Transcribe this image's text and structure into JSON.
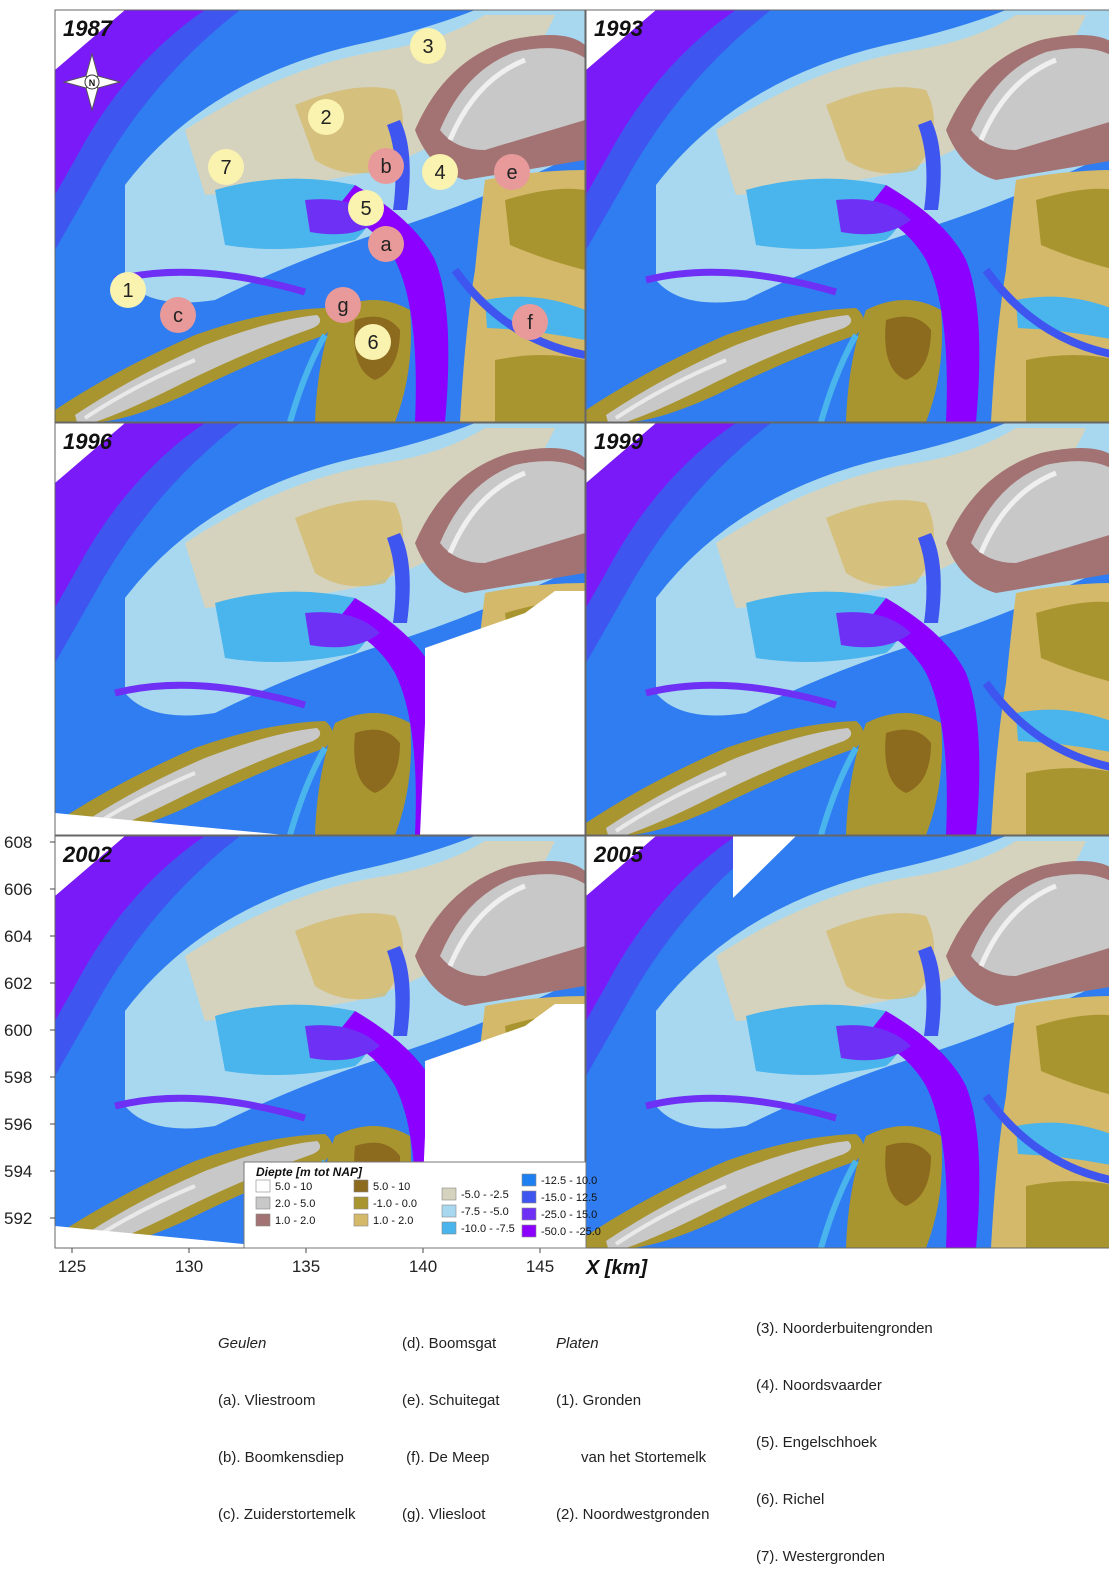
{
  "panels": [
    {
      "year": "1987",
      "variant": "full"
    },
    {
      "year": "1993",
      "variant": "full"
    },
    {
      "year": "1996",
      "variant": "cut"
    },
    {
      "year": "1999",
      "variant": "full"
    },
    {
      "year": "2002",
      "variant": "cut"
    },
    {
      "year": "2005",
      "variant": "notch"
    }
  ],
  "compass": {
    "label": "N"
  },
  "markers": {
    "channels": [
      {
        "id": "a"
      },
      {
        "id": "b"
      },
      {
        "id": "c"
      },
      {
        "id": "e"
      },
      {
        "id": "f"
      },
      {
        "id": "g"
      }
    ],
    "flats": [
      {
        "id": "1"
      },
      {
        "id": "2"
      },
      {
        "id": "3"
      },
      {
        "id": "4"
      },
      {
        "id": "5"
      },
      {
        "id": "6"
      },
      {
        "id": "7"
      }
    ]
  },
  "axes": {
    "x_ticks": [
      "125",
      "130",
      "135",
      "140",
      "145"
    ],
    "y_ticks": [
      "608",
      "606",
      "604",
      "602",
      "600",
      "598",
      "596",
      "594",
      "592"
    ],
    "x_title": "X [km]"
  },
  "legend": {
    "title": "Diepte [m tot NAP]",
    "items": [
      {
        "label": "5.0 - 10",
        "color": "#ffffff"
      },
      {
        "label": "2.0 - 5.0",
        "color": "#c8c8c8"
      },
      {
        "label": "1.0 - 2.0",
        "color": "#a37373"
      },
      {
        "label": "5.0 - 10",
        "color": "#8c6a1e"
      },
      {
        "label": "-1.0 - 0.0",
        "color": "#a99530"
      },
      {
        "label": "1.0 - 2.0",
        "color": "#d4b96a"
      },
      {
        "label": "-5.0 - -2.5",
        "color": "#d5d3bd"
      },
      {
        "label": "-7.5 - -5.0",
        "color": "#a8d8ef"
      },
      {
        "label": "-10.0 - -7.5",
        "color": "#4ab4ec"
      },
      {
        "label": "-12.5 - 10.0",
        "color": "#1e7ff0"
      },
      {
        "label": "-15.0 - 12.5",
        "color": "#3e55f0"
      },
      {
        "label": "-25.0 - 15.0",
        "color": "#6f30f5"
      },
      {
        "label": "-50.0 - -25.0",
        "color": "#8b00ff"
      }
    ]
  },
  "captions": {
    "geulen_head": "Geulen",
    "geulen": [
      "(a). Vliestroom",
      "(b). Boomkensdiep",
      "(c). Zuiderstortemelk"
    ],
    "geulen2": [
      "(d). Boomsgat",
      "(e). Schuitegat",
      " (f). De Meep",
      "(g). Vliesloot"
    ],
    "platen_head": "Platen",
    "platen": [
      "(1). Gronden",
      "      van het Stortemelk",
      "(2). Noordwestgronden"
    ],
    "platen2": [
      "(3). Noorderbuitengronden",
      "(4). Noordsvaarder",
      "(5). Engelschhoek",
      "(6). Richel",
      "(7). Westergronden"
    ]
  },
  "colors": {
    "deep": "#8b00ff",
    "sea": "#2f7df0",
    "channel_mid": "#4ab4ec",
    "shallow": "#a8d8ef",
    "flat": "#d5d3bd",
    "sand": "#d4b96a",
    "olive": "#a99530",
    "brown": "#8c6a1e",
    "dune": "#a37373",
    "island": "#c8c8c8",
    "marker_channel": "#e89a9a",
    "marker_flat": "#faf3b0"
  }
}
